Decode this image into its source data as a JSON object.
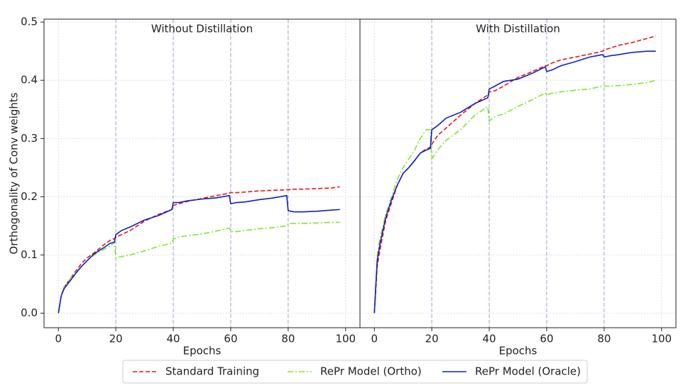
{
  "chart_data": [
    {
      "type": "line",
      "title": "Without Distillation",
      "xlabel": "Epochs",
      "ylabel": "Orthogonality of Conv weights",
      "x": [
        0,
        1,
        2,
        4,
        6,
        8,
        10,
        12,
        14,
        16,
        18,
        19.5,
        20,
        22,
        25,
        30,
        35,
        39.5,
        40,
        42,
        45,
        50,
        55,
        59.5,
        60,
        62,
        65,
        70,
        75,
        79.5,
        80,
        82,
        85,
        90,
        95,
        98
      ],
      "xlim": [
        -5,
        105
      ],
      "xticks": [
        0,
        20,
        40,
        60,
        80,
        100
      ],
      "ylim": [
        -0.025,
        0.505
      ],
      "yticks": [
        {
          "value": 0,
          "label": "0.0"
        },
        0.1,
        0.2,
        0.3,
        0.4,
        0.5
      ],
      "grid": true,
      "vlines": [
        20,
        40,
        60,
        80
      ],
      "vline_color": "#9aa3cc",
      "legend": "bottom",
      "series": [
        {
          "name": "Standard Training",
          "color": "#e8141a",
          "style": "dashed",
          "values": [
            0,
            0.03,
            0.045,
            0.058,
            0.072,
            0.085,
            0.095,
            0.102,
            0.11,
            0.118,
            0.125,
            0.128,
            0.13,
            0.135,
            0.142,
            0.158,
            0.17,
            0.178,
            0.185,
            0.188,
            0.192,
            0.197,
            0.202,
            0.206,
            0.207,
            0.207,
            0.208,
            0.21,
            0.211,
            0.212,
            0.212,
            0.213,
            0.213,
            0.214,
            0.215,
            0.217
          ]
        },
        {
          "name": "RePr Model (Ortho)",
          "color": "#7ee82a",
          "style": "dashdot",
          "values": [
            0,
            0.03,
            0.045,
            0.058,
            0.07,
            0.08,
            0.09,
            0.098,
            0.105,
            0.11,
            0.115,
            0.122,
            0.095,
            0.097,
            0.1,
            0.107,
            0.115,
            0.12,
            0.127,
            0.131,
            0.133,
            0.136,
            0.141,
            0.146,
            0.14,
            0.14,
            0.142,
            0.145,
            0.147,
            0.15,
            0.154,
            0.154,
            0.154,
            0.155,
            0.156,
            0.156
          ]
        },
        {
          "name": "RePr Model (Oracle)",
          "color": "#1020c8",
          "style": "solid",
          "values": [
            0,
            0.03,
            0.042,
            0.055,
            0.068,
            0.08,
            0.09,
            0.1,
            0.107,
            0.113,
            0.12,
            0.122,
            0.135,
            0.142,
            0.148,
            0.16,
            0.168,
            0.178,
            0.19,
            0.19,
            0.193,
            0.196,
            0.198,
            0.202,
            0.188,
            0.19,
            0.191,
            0.195,
            0.198,
            0.202,
            0.176,
            0.174,
            0.174,
            0.175,
            0.177,
            0.178
          ]
        }
      ]
    },
    {
      "type": "line",
      "title": "With Distillation",
      "xlabel": "Epochs",
      "sharey": true,
      "x": [
        0,
        1,
        2,
        4,
        6,
        8,
        10,
        12,
        14,
        16,
        18,
        19.5,
        20,
        22,
        25,
        30,
        35,
        39.5,
        40,
        42,
        45,
        50,
        55,
        59.5,
        60,
        62,
        65,
        70,
        75,
        79.5,
        80,
        82,
        85,
        90,
        95,
        98
      ],
      "xlim": [
        -5,
        105
      ],
      "xticks": [
        0,
        20,
        40,
        60,
        80,
        100
      ],
      "grid": true,
      "vlines": [
        20,
        40,
        60,
        80
      ],
      "vline_color": "#9aa3cc",
      "series": [
        {
          "color": "#e8141a",
          "style": "dashed",
          "values": [
            0,
            0.08,
            0.11,
            0.16,
            0.19,
            0.22,
            0.24,
            0.25,
            0.262,
            0.275,
            0.282,
            0.285,
            0.29,
            0.305,
            0.318,
            0.34,
            0.36,
            0.375,
            0.38,
            0.382,
            0.39,
            0.405,
            0.415,
            0.425,
            0.425,
            0.43,
            0.435,
            0.44,
            0.445,
            0.45,
            0.452,
            0.455,
            0.46,
            0.465,
            0.472,
            0.476
          ]
        },
        {
          "color": "#7ee82a",
          "style": "dashdot",
          "values": [
            0,
            0.1,
            0.13,
            0.17,
            0.2,
            0.23,
            0.25,
            0.265,
            0.28,
            0.3,
            0.315,
            0.315,
            0.265,
            0.28,
            0.297,
            0.315,
            0.34,
            0.355,
            0.33,
            0.338,
            0.342,
            0.355,
            0.367,
            0.378,
            0.375,
            0.378,
            0.38,
            0.383,
            0.385,
            0.39,
            0.39,
            0.39,
            0.391,
            0.393,
            0.396,
            0.4
          ]
        },
        {
          "color": "#1020c8",
          "style": "solid",
          "values": [
            0,
            0.09,
            0.12,
            0.165,
            0.195,
            0.22,
            0.24,
            0.25,
            0.262,
            0.275,
            0.28,
            0.283,
            0.315,
            0.322,
            0.335,
            0.345,
            0.36,
            0.37,
            0.385,
            0.39,
            0.398,
            0.402,
            0.412,
            0.423,
            0.415,
            0.418,
            0.425,
            0.432,
            0.44,
            0.444,
            0.44,
            0.442,
            0.444,
            0.448,
            0.45,
            0.45
          ]
        }
      ]
    }
  ]
}
